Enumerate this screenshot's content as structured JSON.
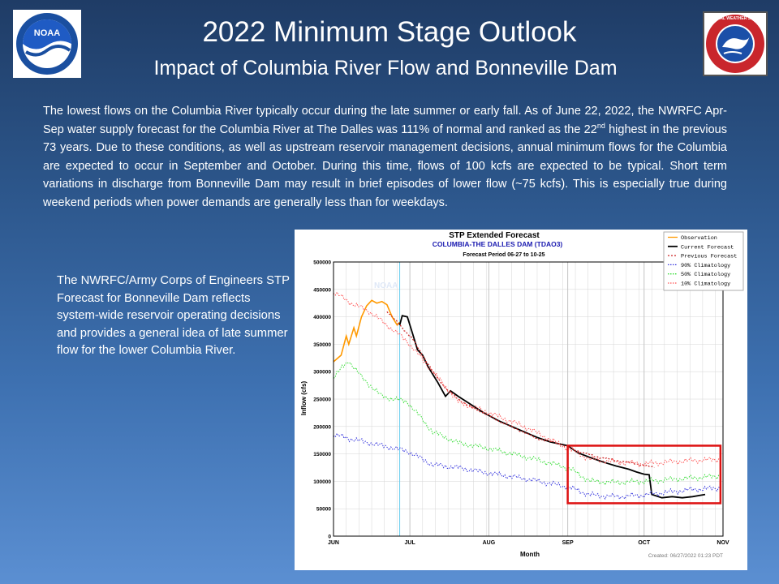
{
  "slide": {
    "title": "2022 Minimum Stage Outlook",
    "subtitle": "Impact of Columbia River Flow and Bonneville Dam",
    "intro_part1": "The lowest flows on the Columbia River typically occur during the late summer or early fall.  As of June 22, 2022, the NWRFC Apr-Sep water supply forecast for the Columbia River at The Dalles was 111% of normal and ranked as the 22",
    "intro_sup": "nd",
    "intro_part2": " highest in the previous 73 years.  Due to these conditions, as well as upstream reservoir management decisions, annual minimum flows for the Columbia are expected to occur in September and October.  During this time, flows of 100 kcfs are expected to be typical.  Short term variations in discharge from Bonneville Dam may result in brief episodes of lower flow (~75 kcfs).  This is especially true during weekend periods when power demands are generally less than for weekdays.",
    "side_note": "The NWRFC/Army Corps of Engineers STP Forecast for Bonneville Dam reflects system-wide reservoir operating decisions and provides a general idea of late summer flow for the lower Columbia River.",
    "logos": {
      "noaa_text": "NOAA",
      "nws_text": "NATIONAL WEATHER SERVICE",
      "watermark": "NOAA"
    },
    "colors": {
      "observation": "#ff9900",
      "current_forecast": "#000000",
      "previous_forecast": "#cc2222",
      "clim_90": "#3333dd",
      "clim_50": "#33dd33",
      "clim_10": "#ff5555",
      "highlight_box": "#dd1111",
      "today_line": "#66ccee"
    }
  },
  "chart_data": {
    "type": "line",
    "title": "STP Extended Forecast",
    "subtitle": "COLUMBIA-THE DALLES DAM (TDAO3)",
    "period": "Forecast Period  06-27 to  10-25",
    "xlabel": "Month",
    "ylabel": "Inflow (cfs)",
    "created": "Created: 06/27/2022 01:23 PDT",
    "x_range": [
      "2022-06-01",
      "2022-11-01"
    ],
    "ylim": [
      0,
      500000
    ],
    "yticks": [
      0,
      50000,
      100000,
      150000,
      200000,
      250000,
      300000,
      350000,
      400000,
      450000,
      500000
    ],
    "month_ticks": [
      {
        "label": "JUN",
        "date": "2022-06-01"
      },
      {
        "label": "JUL",
        "date": "2022-07-01"
      },
      {
        "label": "AUG",
        "date": "2022-08-01"
      },
      {
        "label": "SEP",
        "date": "2022-09-01"
      },
      {
        "label": "OCT",
        "date": "2022-10-01"
      },
      {
        "label": "NOV",
        "date": "2022-11-01"
      }
    ],
    "grid": true,
    "legend_position": "top-right",
    "current_date": "2022-06-27",
    "highlight_range": {
      "x": [
        "2022-09-01",
        "2022-10-31"
      ],
      "y": [
        60000,
        165000
      ]
    },
    "series": [
      {
        "name": "Observation",
        "key": "observation",
        "dash": "",
        "width": 1.6,
        "points": [
          [
            "2022-06-01",
            318000
          ],
          [
            "2022-06-04",
            330000
          ],
          [
            "2022-06-06",
            365000
          ],
          [
            "2022-06-07",
            350000
          ],
          [
            "2022-06-09",
            380000
          ],
          [
            "2022-06-10",
            365000
          ],
          [
            "2022-06-12",
            400000
          ],
          [
            "2022-06-14",
            420000
          ],
          [
            "2022-06-16",
            430000
          ],
          [
            "2022-06-18",
            425000
          ],
          [
            "2022-06-20",
            428000
          ],
          [
            "2022-06-22",
            422000
          ],
          [
            "2022-06-24",
            400000
          ],
          [
            "2022-06-26",
            385000
          ],
          [
            "2022-06-27",
            390000
          ]
        ]
      },
      {
        "name": "Current Forecast",
        "key": "current_forecast",
        "dash": "",
        "width": 1.8,
        "points": [
          [
            "2022-06-27",
            385000
          ],
          [
            "2022-06-28",
            402000
          ],
          [
            "2022-06-30",
            400000
          ],
          [
            "2022-07-02",
            370000
          ],
          [
            "2022-07-04",
            340000
          ],
          [
            "2022-07-06",
            330000
          ],
          [
            "2022-07-08",
            310000
          ],
          [
            "2022-07-10",
            295000
          ],
          [
            "2022-07-12",
            280000
          ],
          [
            "2022-07-15",
            255000
          ],
          [
            "2022-07-17",
            265000
          ],
          [
            "2022-07-20",
            255000
          ],
          [
            "2022-07-25",
            240000
          ],
          [
            "2022-07-30",
            225000
          ],
          [
            "2022-08-05",
            210000
          ],
          [
            "2022-08-10",
            200000
          ],
          [
            "2022-08-15",
            190000
          ],
          [
            "2022-08-20",
            180000
          ],
          [
            "2022-08-25",
            172000
          ],
          [
            "2022-09-01",
            165000
          ],
          [
            "2022-09-05",
            152000
          ],
          [
            "2022-09-10",
            143000
          ],
          [
            "2022-09-15",
            135000
          ],
          [
            "2022-09-20",
            128000
          ],
          [
            "2022-09-25",
            122000
          ],
          [
            "2022-09-28",
            117000
          ],
          [
            "2022-10-01",
            113000
          ],
          [
            "2022-10-03",
            112000
          ],
          [
            "2022-10-04",
            76000
          ],
          [
            "2022-10-08",
            70000
          ],
          [
            "2022-10-12",
            72000
          ],
          [
            "2022-10-16",
            70000
          ],
          [
            "2022-10-20",
            72000
          ],
          [
            "2022-10-25",
            76000
          ]
        ]
      },
      {
        "name": "Previous Forecast",
        "key": "previous_forecast",
        "dash": "2,2",
        "width": 1.2,
        "points": [
          [
            "2022-06-22",
            410000
          ],
          [
            "2022-06-25",
            395000
          ],
          [
            "2022-06-28",
            380000
          ],
          [
            "2022-07-02",
            360000
          ],
          [
            "2022-07-06",
            330000
          ],
          [
            "2022-07-10",
            300000
          ],
          [
            "2022-07-15",
            270000
          ],
          [
            "2022-07-20",
            250000
          ],
          [
            "2022-07-25",
            235000
          ],
          [
            "2022-07-30",
            225000
          ],
          [
            "2022-08-05",
            210000
          ],
          [
            "2022-08-12",
            195000
          ],
          [
            "2022-08-20",
            178000
          ],
          [
            "2022-08-28",
            170000
          ],
          [
            "2022-09-05",
            155000
          ],
          [
            "2022-09-12",
            145000
          ],
          [
            "2022-09-20",
            138000
          ],
          [
            "2022-09-28",
            132000
          ],
          [
            "2022-10-05",
            125000
          ]
        ]
      },
      {
        "name": "90% Climatology",
        "key": "clim_90",
        "dash": "1.5,1.5",
        "width": 1,
        "points": [
          [
            "2022-06-01",
            185000
          ],
          [
            "2022-06-10",
            175000
          ],
          [
            "2022-06-20",
            165000
          ],
          [
            "2022-06-30",
            155000
          ],
          [
            "2022-07-10",
            130000
          ],
          [
            "2022-07-20",
            125000
          ],
          [
            "2022-08-01",
            115000
          ],
          [
            "2022-08-15",
            105000
          ],
          [
            "2022-09-01",
            90000
          ],
          [
            "2022-09-10",
            75000
          ],
          [
            "2022-09-20",
            72000
          ],
          [
            "2022-10-01",
            75000
          ],
          [
            "2022-10-10",
            80000
          ],
          [
            "2022-10-20",
            85000
          ],
          [
            "2022-10-31",
            88000
          ]
        ]
      },
      {
        "name": "50% Climatology",
        "key": "clim_50",
        "dash": "1.5,1.5",
        "width": 1,
        "points": [
          [
            "2022-06-01",
            290000
          ],
          [
            "2022-06-07",
            320000
          ],
          [
            "2022-06-12",
            290000
          ],
          [
            "2022-06-20",
            255000
          ],
          [
            "2022-06-30",
            245000
          ],
          [
            "2022-07-10",
            190000
          ],
          [
            "2022-07-20",
            170000
          ],
          [
            "2022-08-01",
            160000
          ],
          [
            "2022-08-15",
            145000
          ],
          [
            "2022-09-01",
            125000
          ],
          [
            "2022-09-10",
            100000
          ],
          [
            "2022-09-20",
            98000
          ],
          [
            "2022-10-01",
            100000
          ],
          [
            "2022-10-10",
            103000
          ],
          [
            "2022-10-20",
            106000
          ],
          [
            "2022-10-31",
            110000
          ]
        ]
      },
      {
        "name": "10% Climatology",
        "key": "clim_10",
        "dash": "1.5,1.5",
        "width": 1,
        "points": [
          [
            "2022-06-01",
            445000
          ],
          [
            "2022-06-08",
            425000
          ],
          [
            "2022-06-15",
            410000
          ],
          [
            "2022-06-22",
            385000
          ],
          [
            "2022-06-30",
            355000
          ],
          [
            "2022-07-10",
            300000
          ],
          [
            "2022-07-20",
            245000
          ],
          [
            "2022-08-01",
            225000
          ],
          [
            "2022-08-15",
            200000
          ],
          [
            "2022-09-01",
            160000
          ],
          [
            "2022-09-10",
            140000
          ],
          [
            "2022-09-20",
            135000
          ],
          [
            "2022-10-01",
            132000
          ],
          [
            "2022-10-10",
            135000
          ],
          [
            "2022-10-20",
            138000
          ],
          [
            "2022-10-31",
            140000
          ]
        ]
      }
    ]
  }
}
